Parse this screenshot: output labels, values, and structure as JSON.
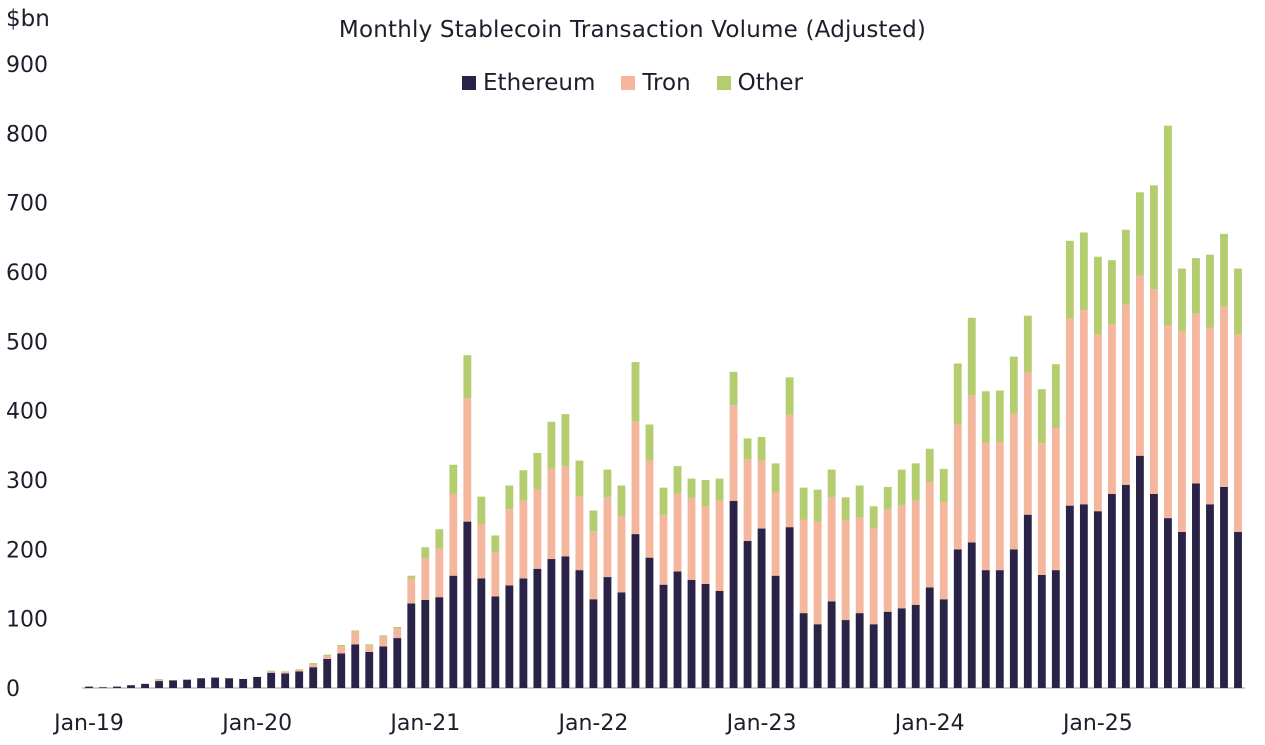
{
  "chart_data": {
    "type": "bar",
    "stacked": true,
    "title": "Monthly Stablecoin Transaction Volume (Adjusted)",
    "ylabel": "$bn",
    "xlabel": "",
    "ylim": [
      0,
      900
    ],
    "yticks": [
      0,
      100,
      200,
      300,
      400,
      500,
      600,
      700,
      800,
      900
    ],
    "xtick_labels": [
      "Jan-19",
      "Jan-20",
      "Jan-21",
      "Jan-22",
      "Jan-23",
      "Jan-24",
      "Jan-25"
    ],
    "grid": false,
    "legend_position": "top-center",
    "categories": [
      "2019-01",
      "2019-02",
      "2019-03",
      "2019-04",
      "2019-05",
      "2019-06",
      "2019-07",
      "2019-08",
      "2019-09",
      "2019-10",
      "2019-11",
      "2019-12",
      "2020-01",
      "2020-02",
      "2020-03",
      "2020-04",
      "2020-05",
      "2020-06",
      "2020-07",
      "2020-08",
      "2020-09",
      "2020-10",
      "2020-11",
      "2020-12",
      "2021-01",
      "2021-02",
      "2021-03",
      "2021-04",
      "2021-05",
      "2021-06",
      "2021-07",
      "2021-08",
      "2021-09",
      "2021-10",
      "2021-11",
      "2021-12",
      "2022-01",
      "2022-02",
      "2022-03",
      "2022-04",
      "2022-05",
      "2022-06",
      "2022-07",
      "2022-08",
      "2022-09",
      "2022-10",
      "2022-11",
      "2022-12",
      "2023-01",
      "2023-02",
      "2023-03",
      "2023-04",
      "2023-05",
      "2023-06",
      "2023-07",
      "2023-08",
      "2023-09",
      "2023-10",
      "2023-11",
      "2023-12",
      "2024-01",
      "2024-02",
      "2024-03",
      "2024-04",
      "2024-05",
      "2024-06",
      "2024-07",
      "2024-08",
      "2024-09",
      "2024-10",
      "2024-11",
      "2024-12",
      "2025-01",
      "2025-02",
      "2025-03",
      "2025-04",
      "2025-05",
      "2025-06",
      "2025-07",
      "2025-08",
      "2025-09",
      "2025-10",
      "2025-11"
    ],
    "series": [
      {
        "name": "Ethereum",
        "color": "#2a2347",
        "values": [
          2,
          1,
          2,
          4,
          6,
          10,
          11,
          12,
          14,
          15,
          14,
          13,
          16,
          22,
          21,
          24,
          30,
          42,
          50,
          63,
          52,
          60,
          72,
          122,
          127,
          131,
          162,
          240,
          158,
          132,
          148,
          158,
          172,
          186,
          190,
          170,
          128,
          160,
          138,
          222,
          188,
          149,
          168,
          156,
          150,
          140,
          270,
          212,
          230,
          162,
          232,
          108,
          92,
          125,
          98,
          108,
          92,
          110,
          115,
          120,
          145,
          128,
          200,
          210,
          170,
          170,
          200,
          250,
          163,
          170,
          263,
          265,
          255,
          280,
          293,
          335,
          280,
          245,
          225,
          295,
          265,
          290,
          225
        ]
      },
      {
        "name": "Tron",
        "color": "#f4b69c",
        "values": [
          0,
          0,
          0,
          0,
          0,
          2,
          0,
          0,
          0,
          0,
          0,
          0,
          0,
          2,
          2,
          2,
          4,
          4,
          10,
          18,
          9,
          14,
          14,
          36,
          60,
          70,
          118,
          178,
          78,
          64,
          110,
          112,
          115,
          130,
          130,
          106,
          98,
          115,
          110,
          162,
          140,
          100,
          112,
          118,
          112,
          130,
          138,
          118,
          98,
          120,
          162,
          135,
          148,
          150,
          145,
          138,
          138,
          148,
          148,
          150,
          152,
          140,
          180,
          212,
          184,
          185,
          196,
          205,
          190,
          205,
          270,
          280,
          255,
          245,
          260,
          260,
          295,
          278,
          290,
          245,
          255,
          260,
          285
        ]
      },
      {
        "name": "Other",
        "color": "#b3cd6f",
        "values": [
          0,
          0,
          0,
          0,
          0,
          1,
          0,
          0,
          0,
          0,
          0,
          0,
          0,
          1,
          1,
          1,
          2,
          2,
          2,
          2,
          2,
          2,
          2,
          4,
          16,
          28,
          42,
          62,
          40,
          24,
          34,
          44,
          52,
          68,
          75,
          52,
          30,
          40,
          44,
          86,
          52,
          40,
          40,
          28,
          38,
          32,
          48,
          30,
          34,
          42,
          54,
          46,
          46,
          40,
          32,
          46,
          32,
          32,
          52,
          54,
          48,
          48,
          88,
          112,
          74,
          74,
          82,
          82,
          78,
          92,
          112,
          112,
          112,
          92,
          108,
          120,
          150,
          288,
          90,
          80,
          105,
          105,
          95
        ]
      }
    ]
  }
}
